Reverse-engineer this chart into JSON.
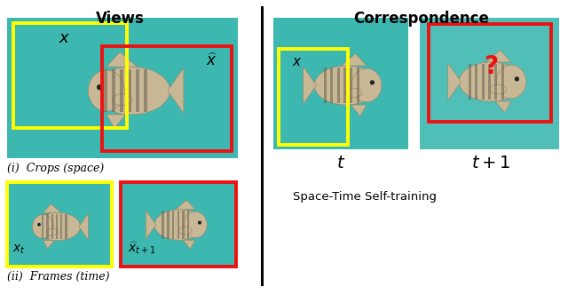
{
  "fig_width": 6.4,
  "fig_height": 3.32,
  "dpi": 100,
  "bg_color": "#ffffff",
  "uw_teal": "#3db8b0",
  "uw_teal2": "#50bfb8",
  "fish_body": "#c8b896",
  "fish_stripe": "#6a6050",
  "title_views": "Views",
  "title_corr": "Correspondence",
  "label_crops": "(i)  Crops (space)",
  "label_frames": "(ii)  Frames (time)",
  "label_t": "$t$",
  "label_t1": "$t+1$",
  "label_sst": "Space-Time Self-training",
  "yellow": "#ffff00",
  "red": "#ee1111",
  "black": "#000000"
}
